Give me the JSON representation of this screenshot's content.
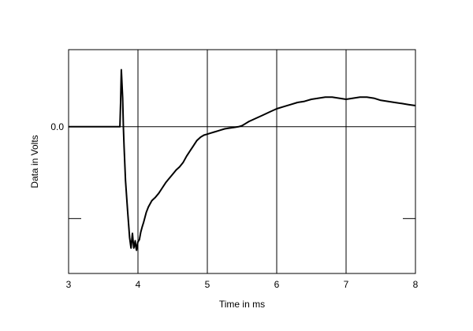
{
  "chart_data": {
    "type": "line",
    "title": "",
    "xlabel": "Time in ms",
    "ylabel": "Data in Volts",
    "xlim": [
      3,
      8
    ],
    "ylim": [
      -1.39,
      0.73
    ],
    "grid": true,
    "x_ticks": [
      {
        "value": 3,
        "label": "3"
      },
      {
        "value": 4,
        "label": "4"
      },
      {
        "value": 5,
        "label": "5"
      },
      {
        "value": 6,
        "label": "6"
      },
      {
        "value": 7,
        "label": "7"
      },
      {
        "value": 8,
        "label": "8"
      }
    ],
    "y_ticks": [
      {
        "value": 0.0,
        "label": "0.0"
      },
      {
        "value": -0.87,
        "label": ""
      }
    ],
    "series": [
      {
        "name": "",
        "color": "#000000",
        "x": [
          3.0,
          3.74,
          3.75,
          3.76,
          3.78,
          3.79,
          3.8,
          3.82,
          3.85,
          3.88,
          3.9,
          3.91,
          3.92,
          3.93,
          3.94,
          3.95,
          3.96,
          3.97,
          3.98,
          3.99,
          4.0,
          4.02,
          4.04,
          4.06,
          4.08,
          4.1,
          4.12,
          4.15,
          4.2,
          4.25,
          4.3,
          4.35,
          4.4,
          4.45,
          4.5,
          4.55,
          4.6,
          4.65,
          4.7,
          4.75,
          4.8,
          4.85,
          4.9,
          4.95,
          5.0,
          5.05,
          5.1,
          5.15,
          5.2,
          5.25,
          5.3,
          5.35,
          5.4,
          5.45,
          5.5,
          5.55,
          5.6,
          5.7,
          5.8,
          5.9,
          6.0,
          6.1,
          6.2,
          6.3,
          6.4,
          6.5,
          6.6,
          6.7,
          6.8,
          6.9,
          7.0,
          7.1,
          7.2,
          7.3,
          7.4,
          7.5,
          7.6,
          7.7,
          7.8,
          7.9,
          8.0
        ],
        "values": [
          0.0,
          0.0,
          0.23,
          0.54,
          0.27,
          0.0,
          -0.19,
          -0.51,
          -0.79,
          -1.05,
          -1.15,
          -1.08,
          -1.01,
          -1.08,
          -1.15,
          -1.12,
          -1.08,
          -1.14,
          -1.17,
          -1.12,
          -1.09,
          -1.07,
          -1.0,
          -0.95,
          -0.91,
          -0.86,
          -0.81,
          -0.76,
          -0.7,
          -0.67,
          -0.63,
          -0.58,
          -0.53,
          -0.49,
          -0.45,
          -0.41,
          -0.38,
          -0.34,
          -0.28,
          -0.23,
          -0.18,
          -0.13,
          -0.1,
          -0.08,
          -0.07,
          -0.06,
          -0.05,
          -0.04,
          -0.03,
          -0.02,
          -0.015,
          -0.01,
          -0.005,
          0.0,
          0.01,
          0.03,
          0.05,
          0.08,
          0.11,
          0.14,
          0.17,
          0.19,
          0.21,
          0.23,
          0.24,
          0.26,
          0.27,
          0.28,
          0.28,
          0.27,
          0.26,
          0.27,
          0.28,
          0.28,
          0.27,
          0.25,
          0.24,
          0.23,
          0.22,
          0.21,
          0.2
        ]
      }
    ]
  }
}
